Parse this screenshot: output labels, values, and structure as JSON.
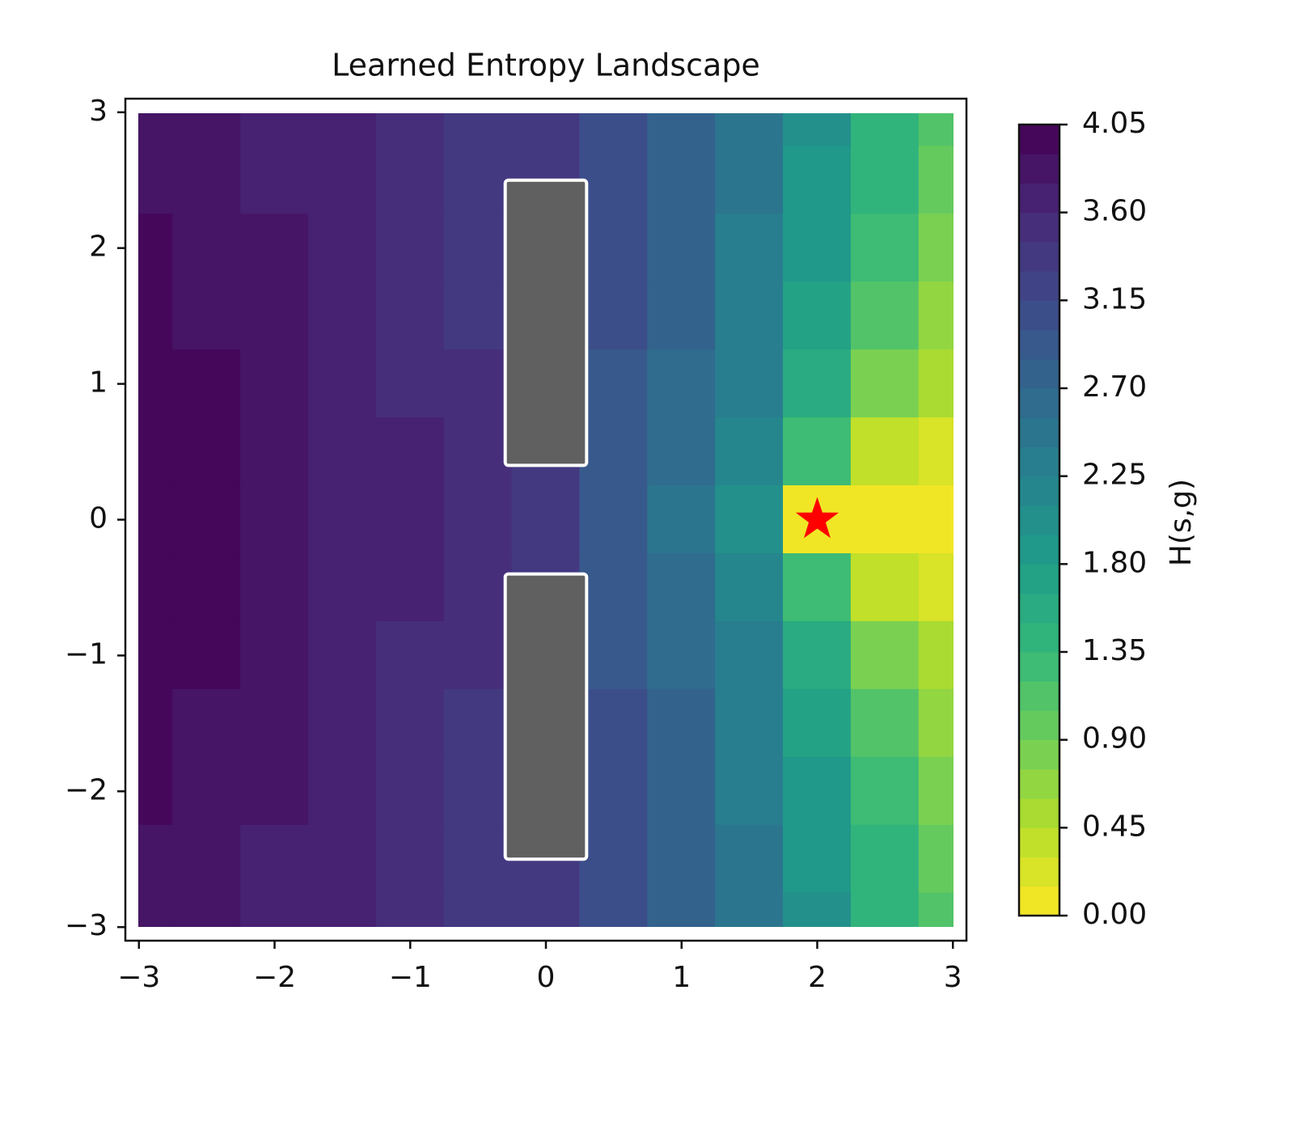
{
  "chart_data": {
    "type": "contour",
    "title": "Learned Entropy Landscape",
    "colorbar_label": "H(s,g)",
    "xlim": [
      -3.1,
      3.1
    ],
    "ylim": [
      -3.1,
      3.1
    ],
    "xticks": [
      {
        "value": -3,
        "label": "−3"
      },
      {
        "value": -2,
        "label": "−2"
      },
      {
        "value": -1,
        "label": "−1"
      },
      0,
      1,
      2,
      3
    ],
    "yticks": [
      {
        "value": -3,
        "label": "−3"
      },
      {
        "value": -2,
        "label": "−2"
      },
      {
        "value": -1,
        "label": "−1"
      },
      0,
      1,
      2,
      3
    ],
    "zlim": [
      0,
      4.05
    ],
    "zticks": [
      {
        "value": 0,
        "label": "0.00"
      },
      {
        "value": 0.45,
        "label": "0.45"
      },
      {
        "value": 0.9,
        "label": "0.90"
      },
      {
        "value": 1.35,
        "label": "1.35"
      },
      {
        "value": 1.8,
        "label": "1.80"
      },
      {
        "value": 2.25,
        "label": "2.25"
      },
      {
        "value": 2.7,
        "label": "2.70"
      },
      {
        "value": 3.15,
        "label": "3.15"
      },
      {
        "value": 3.6,
        "label": "3.60"
      },
      {
        "value": 4.05,
        "label": "4.05"
      }
    ],
    "n_levels": 27,
    "colormap": [
      "#fde725",
      "#b5de2b",
      "#6ece58",
      "#35b779",
      "#1f9e89",
      "#26828e",
      "#31688e",
      "#3e4989",
      "#482878",
      "#440154"
    ],
    "grid": {
      "x": [
        -3,
        -2.5,
        -2,
        -1.5,
        -1,
        -0.5,
        0,
        0.5,
        1,
        1.5,
        2,
        2.5,
        3
      ],
      "y": [
        3,
        2.5,
        2,
        1.5,
        1,
        0.5,
        0,
        -0.5,
        -1,
        -1.5,
        -2,
        -2.5,
        -3
      ],
      "z": [
        [
          3.8,
          3.75,
          3.7,
          3.6,
          3.5,
          3.4,
          3.3,
          3.05,
          2.75,
          2.45,
          1.95,
          1.45,
          1.1
        ],
        [
          3.85,
          3.8,
          3.72,
          3.62,
          3.52,
          3.42,
          3.3,
          3.05,
          2.75,
          2.42,
          1.9,
          1.4,
          1.0
        ],
        [
          3.9,
          3.85,
          3.75,
          3.65,
          3.55,
          3.42,
          3.3,
          3.02,
          2.72,
          2.38,
          1.85,
          1.3,
          0.85
        ],
        [
          3.95,
          3.88,
          3.78,
          3.67,
          3.56,
          3.44,
          3.3,
          3.0,
          2.7,
          2.32,
          1.75,
          1.15,
          0.7
        ],
        [
          3.97,
          3.92,
          3.82,
          3.7,
          3.58,
          3.45,
          3.3,
          2.98,
          2.65,
          2.25,
          1.55,
          0.75,
          0.5
        ],
        [
          3.98,
          3.94,
          3.85,
          3.72,
          3.6,
          3.46,
          3.3,
          2.95,
          2.55,
          2.1,
          1.2,
          0.3,
          0.2
        ],
        [
          3.99,
          3.95,
          3.86,
          3.73,
          3.6,
          3.47,
          3.3,
          2.93,
          2.5,
          2.0,
          0.0,
          0.05,
          0.05
        ],
        [
          3.98,
          3.94,
          3.85,
          3.72,
          3.6,
          3.46,
          3.3,
          2.95,
          2.55,
          2.1,
          1.2,
          0.3,
          0.2
        ],
        [
          3.97,
          3.92,
          3.82,
          3.7,
          3.58,
          3.45,
          3.3,
          2.98,
          2.65,
          2.25,
          1.55,
          0.75,
          0.5
        ],
        [
          3.95,
          3.88,
          3.78,
          3.67,
          3.56,
          3.44,
          3.3,
          3.0,
          2.7,
          2.32,
          1.75,
          1.15,
          0.7
        ],
        [
          3.9,
          3.85,
          3.75,
          3.65,
          3.55,
          3.42,
          3.3,
          3.02,
          2.72,
          2.38,
          1.85,
          1.3,
          0.85
        ],
        [
          3.85,
          3.8,
          3.72,
          3.62,
          3.52,
          3.42,
          3.3,
          3.05,
          2.75,
          2.42,
          1.9,
          1.4,
          1.0
        ],
        [
          3.8,
          3.75,
          3.7,
          3.6,
          3.5,
          3.4,
          3.3,
          3.05,
          2.75,
          2.45,
          1.95,
          1.45,
          1.1
        ]
      ]
    },
    "obstacles": [
      {
        "x": [
          -0.3,
          0.3
        ],
        "y": [
          0.4,
          2.5
        ],
        "color": "#606060"
      },
      {
        "x": [
          -0.3,
          0.3
        ],
        "y": [
          -2.5,
          -0.4
        ],
        "color": "#606060"
      }
    ],
    "goal": {
      "x": 2,
      "y": 0,
      "color": "#ff0000"
    }
  }
}
